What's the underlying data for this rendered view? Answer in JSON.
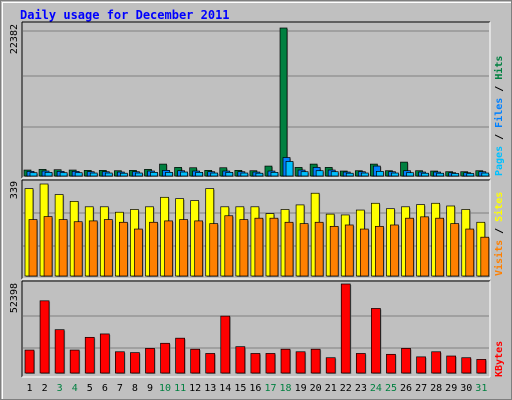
{
  "title": "Daily usage for December 2011",
  "colors": {
    "background": "#c0c0c0",
    "title": "#0000ff",
    "hits": "#008040",
    "files": "#0080ff",
    "pages": "#00c0ff",
    "visits": "#ff8000",
    "sites": "#ffff00",
    "kbytes": "#ff0000",
    "weekend": "#008040",
    "weekday": "#000000"
  },
  "y_labels": {
    "hits_max": "22382",
    "sites_max": "339",
    "kbytes_max": "52398"
  },
  "legend": {
    "pages": "Pages",
    "files": "Files",
    "hits": "Hits",
    "sites": "Sites",
    "visits": "Visits",
    "kbytes": "KBytes",
    "separator": " / "
  },
  "chart_data": [
    {
      "type": "bar",
      "panel": "hits-files-pages",
      "categories": [
        "1",
        "2",
        "3",
        "4",
        "5",
        "6",
        "7",
        "8",
        "9",
        "10",
        "11",
        "12",
        "13",
        "14",
        "15",
        "16",
        "17",
        "18",
        "19",
        "20",
        "21",
        "22",
        "23",
        "24",
        "25",
        "26",
        "27",
        "28",
        "29",
        "30",
        "31"
      ],
      "ylim": [
        0,
        22382
      ],
      "series": [
        {
          "name": "Hits",
          "values": [
            900,
            1000,
            950,
            900,
            850,
            850,
            800,
            850,
            1000,
            1800,
            1300,
            1250,
            850,
            1250,
            850,
            800,
            1500,
            22382,
            1300,
            1800,
            1300,
            750,
            800,
            1800,
            800,
            2100,
            800,
            750,
            650,
            650,
            800
          ]
        },
        {
          "name": "Files",
          "values": [
            700,
            750,
            700,
            700,
            650,
            650,
            600,
            650,
            750,
            850,
            800,
            750,
            650,
            750,
            650,
            600,
            750,
            2800,
            900,
            1300,
            900,
            600,
            650,
            1500,
            650,
            800,
            600,
            600,
            500,
            500,
            650
          ]
        },
        {
          "name": "Pages",
          "values": [
            500,
            550,
            500,
            500,
            450,
            450,
            420,
            450,
            550,
            550,
            600,
            550,
            450,
            550,
            450,
            420,
            550,
            2200,
            650,
            800,
            650,
            420,
            450,
            700,
            450,
            500,
            420,
            420,
            380,
            380,
            450
          ]
        }
      ]
    },
    {
      "type": "bar",
      "panel": "sites-visits",
      "categories": [
        "1",
        "2",
        "3",
        "4",
        "5",
        "6",
        "7",
        "8",
        "9",
        "10",
        "11",
        "12",
        "13",
        "14",
        "15",
        "16",
        "17",
        "18",
        "19",
        "20",
        "21",
        "22",
        "23",
        "24",
        "25",
        "26",
        "27",
        "28",
        "29",
        "30",
        "31"
      ],
      "ylim": [
        0,
        339
      ],
      "series": [
        {
          "name": "Sites",
          "values": [
            322,
            339,
            300,
            275,
            255,
            255,
            235,
            245,
            255,
            290,
            285,
            278,
            322,
            255,
            255,
            255,
            230,
            245,
            262,
            305,
            228,
            225,
            243,
            268,
            248,
            255,
            263,
            268,
            258,
            245,
            198
          ]
        },
        {
          "name": "Visits",
          "values": [
            208,
            219,
            208,
            200,
            203,
            208,
            198,
            173,
            198,
            203,
            208,
            203,
            193,
            222,
            208,
            213,
            213,
            198,
            193,
            198,
            183,
            188,
            173,
            183,
            188,
            213,
            218,
            213,
            193,
            173,
            143
          ]
        }
      ]
    },
    {
      "type": "bar",
      "panel": "kbytes",
      "categories": [
        "1",
        "2",
        "3",
        "4",
        "5",
        "6",
        "7",
        "8",
        "9",
        "10",
        "11",
        "12",
        "13",
        "14",
        "15",
        "16",
        "17",
        "18",
        "19",
        "20",
        "21",
        "22",
        "23",
        "24",
        "25",
        "26",
        "27",
        "28",
        "29",
        "30",
        "31"
      ],
      "ylim": [
        0,
        52398
      ],
      "series": [
        {
          "name": "KBytes",
          "values": [
            13500,
            42500,
            25500,
            13500,
            21000,
            23000,
            12500,
            12000,
            14500,
            17500,
            20500,
            14000,
            11500,
            33500,
            15500,
            11500,
            11500,
            14000,
            12500,
            14000,
            9000,
            52398,
            11500,
            38000,
            11000,
            14500,
            9500,
            12500,
            10000,
            9000,
            8000
          ]
        }
      ]
    }
  ],
  "x_labels": [
    "1",
    "2",
    "3",
    "4",
    "5",
    "6",
    "7",
    "8",
    "9",
    "10",
    "11",
    "12",
    "13",
    "14",
    "15",
    "16",
    "17",
    "18",
    "19",
    "20",
    "21",
    "22",
    "23",
    "24",
    "25",
    "26",
    "27",
    "28",
    "29",
    "30",
    "31"
  ],
  "weekend_days": [
    3,
    4,
    10,
    11,
    17,
    18,
    24,
    25,
    31
  ]
}
